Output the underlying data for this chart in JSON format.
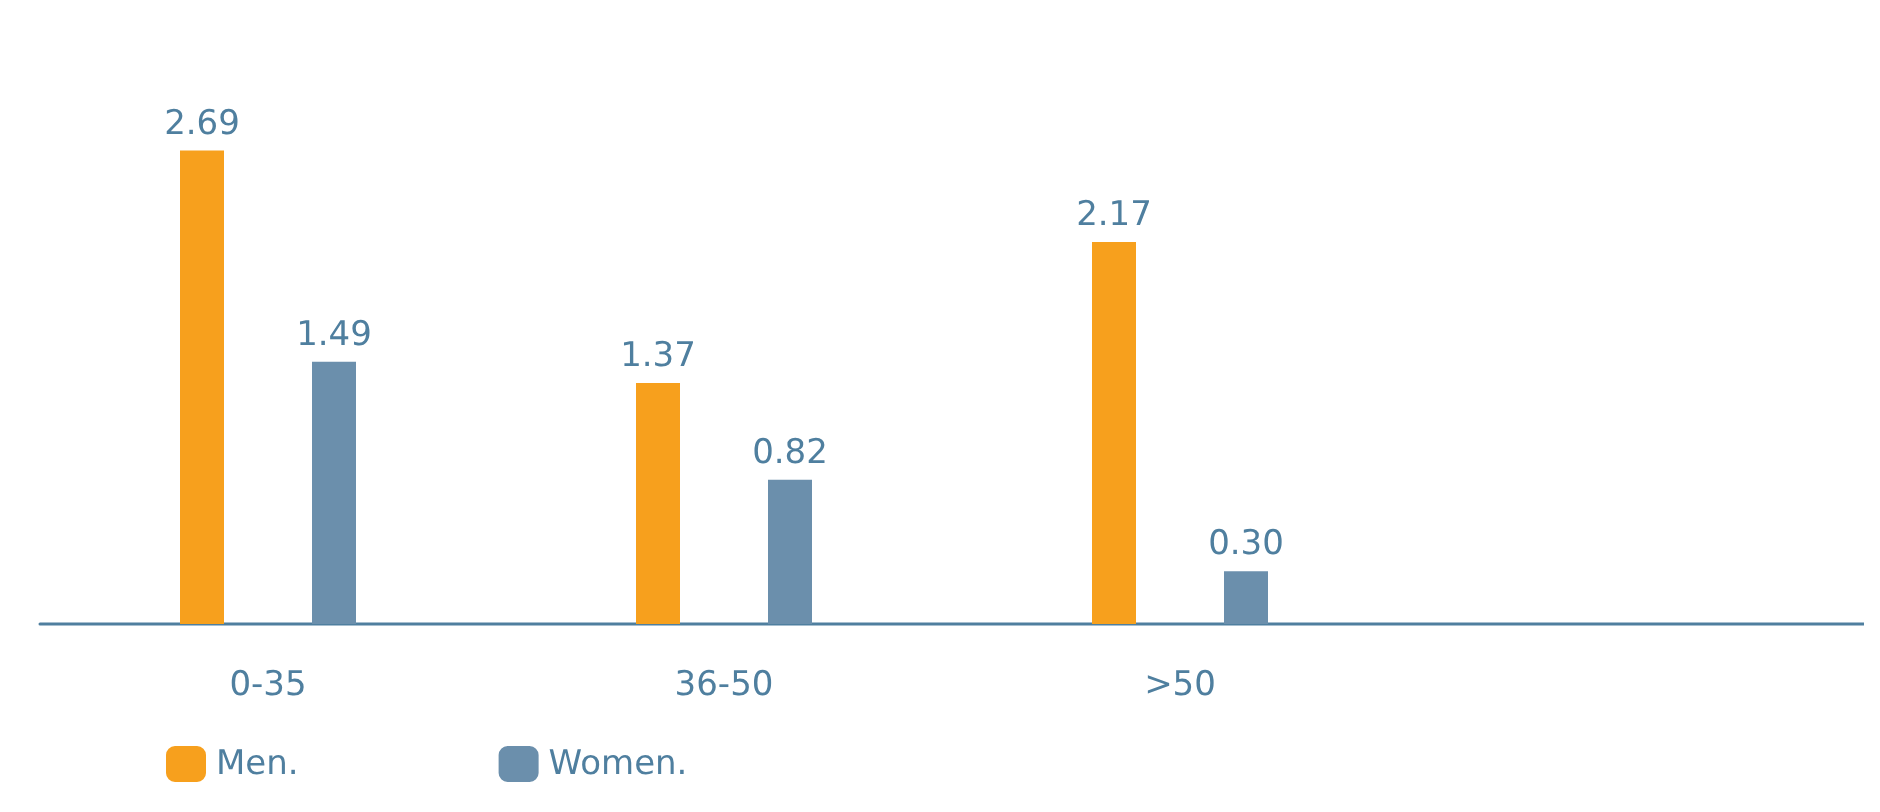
{
  "chart_data": {
    "type": "bar",
    "categories": [
      "0-35",
      "36-50",
      ">50",
      null
    ],
    "series": [
      {
        "name": "Men.",
        "color": "#f7a01d",
        "values": [
          2.69,
          1.37,
          2.17,
          null
        ],
        "value_labels": [
          "2.69",
          "1.37",
          "2.17",
          null
        ]
      },
      {
        "name": "Women.",
        "color": "#6b8fac",
        "values": [
          1.49,
          0.82,
          0.3,
          null
        ],
        "value_labels": [
          "1.49",
          "0.82",
          "0.30",
          null
        ]
      }
    ],
    "legend": "bottom left",
    "grid": false
  }
}
